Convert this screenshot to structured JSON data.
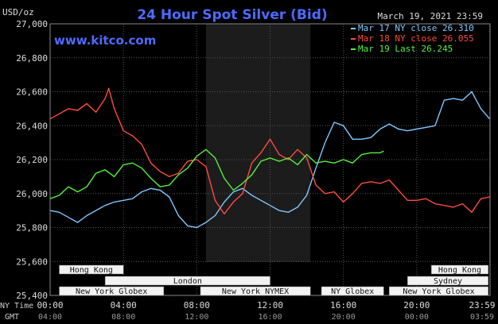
{
  "chart_data": {
    "type": "line",
    "title": "24 Hour Spot Silver (Bid)",
    "unit_label": "USD/oz",
    "date_label": "March 19, 2021 23:59",
    "watermark": "www.kitco.com",
    "ylim": [
      25400,
      27000
    ],
    "y_ticks": [
      "27,000",
      "26,800",
      "26,600",
      "26,400",
      "26,200",
      "26,000",
      "25,800",
      "25,600",
      "25,400"
    ],
    "x_row1_caption": "NY Time",
    "x_row2_caption": "GMT",
    "x_ticks_ny": [
      "00:00",
      "04:00",
      "08:00",
      "12:00",
      "16:00",
      "20:00",
      "23:59"
    ],
    "x_ticks_gmt": [
      "04:00",
      "08:00",
      "12:00",
      "16:00",
      "20:00",
      "00:00",
      "03:59"
    ],
    "grid": true,
    "legend_placement": "top-right",
    "series": [
      {
        "name": "Mar 17 NY close 26.310",
        "color": "#7ec8ff",
        "points": [
          [
            0,
            25900
          ],
          [
            0.5,
            25890
          ],
          [
            1,
            25860
          ],
          [
            1.5,
            25830
          ],
          [
            2,
            25870
          ],
          [
            2.5,
            25900
          ],
          [
            3,
            25930
          ],
          [
            3.5,
            25950
          ],
          [
            4,
            25960
          ],
          [
            4.5,
            25970
          ],
          [
            5,
            26010
          ],
          [
            5.5,
            26030
          ],
          [
            6,
            26020
          ],
          [
            6.5,
            25980
          ],
          [
            7,
            25870
          ],
          [
            7.5,
            25810
          ],
          [
            8,
            25800
          ],
          [
            8.5,
            25830
          ],
          [
            9,
            25870
          ],
          [
            9.5,
            25950
          ],
          [
            10,
            26010
          ],
          [
            10.5,
            26030
          ],
          [
            11,
            25990
          ],
          [
            11.5,
            25960
          ],
          [
            12,
            25930
          ],
          [
            12.5,
            25900
          ],
          [
            13,
            25890
          ],
          [
            13.5,
            25920
          ],
          [
            14,
            25990
          ],
          [
            14.5,
            26150
          ],
          [
            15,
            26300
          ],
          [
            15.5,
            26420
          ],
          [
            16,
            26400
          ],
          [
            16.5,
            26320
          ],
          [
            17,
            26320
          ],
          [
            17.5,
            26330
          ],
          [
            18,
            26380
          ],
          [
            18.5,
            26410
          ],
          [
            19,
            26380
          ],
          [
            19.5,
            26370
          ],
          [
            20,
            26380
          ],
          [
            20.5,
            26390
          ],
          [
            21,
            26400
          ],
          [
            21.5,
            26550
          ],
          [
            22,
            26560
          ],
          [
            22.5,
            26550
          ],
          [
            23,
            26600
          ],
          [
            23.5,
            26500
          ],
          [
            23.98,
            26440
          ]
        ]
      },
      {
        "name": "Mar 18 NY close 26.055",
        "color": "#ff4a3d",
        "points": [
          [
            0,
            26440
          ],
          [
            0.5,
            26470
          ],
          [
            1,
            26500
          ],
          [
            1.5,
            26490
          ],
          [
            2,
            26530
          ],
          [
            2.5,
            26480
          ],
          [
            3,
            26560
          ],
          [
            3.2,
            26620
          ],
          [
            3.5,
            26500
          ],
          [
            4,
            26370
          ],
          [
            4.5,
            26340
          ],
          [
            5,
            26290
          ],
          [
            5.5,
            26180
          ],
          [
            6,
            26130
          ],
          [
            6.5,
            26100
          ],
          [
            7,
            26120
          ],
          [
            7.5,
            26190
          ],
          [
            8,
            26200
          ],
          [
            8.5,
            26160
          ],
          [
            9,
            25960
          ],
          [
            9.5,
            25880
          ],
          [
            10,
            25950
          ],
          [
            10.5,
            26000
          ],
          [
            11,
            26180
          ],
          [
            11.5,
            26240
          ],
          [
            12,
            26320
          ],
          [
            12.5,
            26230
          ],
          [
            13,
            26200
          ],
          [
            13.5,
            26260
          ],
          [
            14,
            26210
          ],
          [
            14.5,
            26050
          ],
          [
            15,
            26000
          ],
          [
            15.5,
            26010
          ],
          [
            16,
            25950
          ],
          [
            16.5,
            26000
          ],
          [
            17,
            26060
          ],
          [
            17.5,
            26070
          ],
          [
            18,
            26060
          ],
          [
            18.5,
            26080
          ],
          [
            19,
            26020
          ],
          [
            19.5,
            25960
          ],
          [
            20,
            25960
          ],
          [
            20.5,
            25970
          ],
          [
            21,
            25940
          ],
          [
            21.5,
            25930
          ],
          [
            22,
            25920
          ],
          [
            22.5,
            25940
          ],
          [
            23,
            25890
          ],
          [
            23.5,
            25970
          ],
          [
            23.98,
            25980
          ]
        ]
      },
      {
        "name": "Mar 19 Last 26.245",
        "color": "#56f03e",
        "points": [
          [
            0,
            25970
          ],
          [
            0.5,
            25990
          ],
          [
            1,
            26040
          ],
          [
            1.5,
            26010
          ],
          [
            2,
            26040
          ],
          [
            2.5,
            26120
          ],
          [
            3,
            26140
          ],
          [
            3.5,
            26100
          ],
          [
            4,
            26170
          ],
          [
            4.5,
            26180
          ],
          [
            5,
            26150
          ],
          [
            5.5,
            26090
          ],
          [
            6,
            26040
          ],
          [
            6.5,
            26050
          ],
          [
            7,
            26110
          ],
          [
            7.5,
            26150
          ],
          [
            8,
            26220
          ],
          [
            8.5,
            26260
          ],
          [
            9,
            26210
          ],
          [
            9.5,
            26090
          ],
          [
            10,
            26020
          ],
          [
            10.5,
            26060
          ],
          [
            11,
            26110
          ],
          [
            11.5,
            26190
          ],
          [
            12,
            26210
          ],
          [
            12.5,
            26190
          ],
          [
            13,
            26210
          ],
          [
            13.5,
            26170
          ],
          [
            14,
            26230
          ],
          [
            14.5,
            26180
          ],
          [
            15,
            26190
          ],
          [
            15.5,
            26180
          ],
          [
            16,
            26200
          ],
          [
            16.5,
            26180
          ],
          [
            17,
            26230
          ],
          [
            17.5,
            26240
          ],
          [
            18,
            26240
          ],
          [
            18.2,
            26250
          ]
        ]
      }
    ],
    "sessions": [
      {
        "name": "Hong Kong",
        "row": 0,
        "start": 0.5,
        "end": 4.0
      },
      {
        "name": "Hong Kong",
        "row": 0,
        "start": 20.8,
        "end": 23.9
      },
      {
        "name": "London",
        "row": 1,
        "start": 3.0,
        "end": 12.0
      },
      {
        "name": "Sydney",
        "row": 1,
        "start": 19.5,
        "end": 23.9
      },
      {
        "name": "New York Globex",
        "row": 2,
        "start": 0.5,
        "end": 6.2
      },
      {
        "name": "New York NYMEX",
        "row": 2,
        "start": 8.2,
        "end": 14.2
      },
      {
        "name": "NY Globex",
        "row": 2,
        "start": 14.8,
        "end": 18.2
      },
      {
        "name": "New York Globex",
        "row": 2,
        "start": 18.5,
        "end": 23.9
      }
    ]
  }
}
